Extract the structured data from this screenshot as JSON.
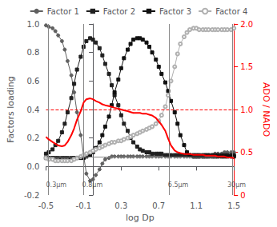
{
  "chart_data": {
    "type": "line",
    "xlabel": "log Dp",
    "ylabel": "Factors loading",
    "y2label": "ADO / NADO",
    "xlim": [
      -0.5,
      1.5
    ],
    "ylim": [
      -0.2,
      1.0
    ],
    "y2lim": [
      0,
      2.0
    ],
    "xticks": [
      -0.5,
      -0.1,
      0.3,
      0.7,
      1.1,
      1.5
    ],
    "yticks": [
      -0.2,
      {
        "value": 0.0,
        "label": "0.0"
      },
      0.2,
      0.4,
      0.6,
      0.8,
      {
        "value": 1.0,
        "label": "1.0"
      }
    ],
    "y2ticks": [
      0,
      0.5,
      {
        "value": 1.0,
        "label": "1.0"
      },
      1.5,
      {
        "value": 2.0,
        "label": "2.0"
      }
    ],
    "grid": false,
    "legend": "top",
    "x": [
      -0.5,
      -0.47,
      -0.43,
      -0.4,
      -0.37,
      -0.33,
      -0.3,
      -0.27,
      -0.23,
      -0.2,
      -0.17,
      -0.13,
      -0.1,
      -0.07,
      -0.03,
      0.0,
      0.03,
      0.07,
      0.1,
      0.13,
      0.17,
      0.2,
      0.23,
      0.27,
      0.3,
      0.33,
      0.37,
      0.4,
      0.43,
      0.47,
      0.5,
      0.53,
      0.57,
      0.6,
      0.63,
      0.67,
      0.7,
      0.73,
      0.77,
      0.8,
      0.83,
      0.87,
      0.9,
      0.93,
      0.97,
      1.0,
      1.03,
      1.07,
      1.1,
      1.13,
      1.17,
      1.2,
      1.23,
      1.27,
      1.3,
      1.33,
      1.37,
      1.4,
      1.43,
      1.47,
      1.5
    ],
    "series": [
      {
        "name": "Factor 1",
        "color": "#606060",
        "marker": "circle",
        "values": [
          0.99,
          0.98,
          0.97,
          0.95,
          0.92,
          0.88,
          0.82,
          0.74,
          0.64,
          0.52,
          0.38,
          0.22,
          0.08,
          -0.05,
          -0.1,
          -0.09,
          -0.06,
          -0.02,
          0.02,
          0.05,
          0.06,
          0.07,
          0.07,
          0.07,
          0.07,
          0.07,
          0.07,
          0.07,
          0.07,
          0.07,
          0.07,
          0.07,
          0.07,
          0.07,
          0.07,
          0.07,
          0.07,
          0.07,
          0.07,
          0.07,
          0.07,
          0.07,
          0.07,
          0.07,
          0.07,
          0.07,
          0.07,
          0.07,
          0.07,
          0.07,
          0.07,
          0.08,
          0.08,
          0.08,
          0.09,
          0.09,
          0.09,
          0.1,
          0.1,
          0.1,
          0.1
        ]
      },
      {
        "name": "Factor 2",
        "color": "#202020",
        "marker": "square",
        "values": [
          0.09,
          0.1,
          0.12,
          0.15,
          0.18,
          0.24,
          0.3,
          0.38,
          0.48,
          0.58,
          0.68,
          0.77,
          0.84,
          0.88,
          0.9,
          0.89,
          0.87,
          0.83,
          0.78,
          0.72,
          0.65,
          0.57,
          0.5,
          0.43,
          0.36,
          0.3,
          0.25,
          0.2,
          0.17,
          0.14,
          0.12,
          0.11,
          0.1,
          0.1,
          0.09,
          0.09,
          0.09,
          0.09,
          0.08,
          0.08,
          0.08,
          0.08,
          0.08,
          0.08,
          0.08,
          0.08,
          0.08,
          0.08,
          0.08,
          0.08,
          0.08,
          0.08,
          0.08,
          0.08,
          0.08,
          0.08,
          0.08,
          0.08,
          0.08,
          0.08,
          0.08
        ]
      },
      {
        "name": "Factor 3",
        "color": "#101010",
        "marker": "square",
        "values": [
          0.06,
          0.06,
          0.06,
          0.06,
          0.06,
          0.06,
          0.06,
          0.06,
          0.06,
          0.06,
          0.06,
          0.06,
          0.06,
          0.07,
          0.08,
          0.1,
          0.13,
          0.17,
          0.22,
          0.28,
          0.35,
          0.43,
          0.52,
          0.61,
          0.69,
          0.76,
          0.82,
          0.86,
          0.89,
          0.9,
          0.9,
          0.89,
          0.87,
          0.84,
          0.8,
          0.75,
          0.7,
          0.65,
          0.59,
          0.53,
          0.46,
          0.38,
          0.3,
          0.22,
          0.15,
          0.1,
          0.08,
          0.07,
          0.07,
          0.07,
          0.07,
          0.07,
          0.07,
          0.07,
          0.07,
          0.07,
          0.07,
          0.07,
          0.07,
          0.07,
          0.07
        ]
      },
      {
        "name": "Factor 4",
        "color": "#b0b0b0",
        "marker": "open_circle",
        "values": [
          0.06,
          0.05,
          0.05,
          0.04,
          0.04,
          0.04,
          0.04,
          0.04,
          0.04,
          0.05,
          0.06,
          0.07,
          0.08,
          0.09,
          0.1,
          0.11,
          0.12,
          0.13,
          0.14,
          0.15,
          0.16,
          0.17,
          0.17,
          0.18,
          0.18,
          0.19,
          0.2,
          0.21,
          0.22,
          0.23,
          0.24,
          0.25,
          0.26,
          0.27,
          0.28,
          0.3,
          0.32,
          0.36,
          0.42,
          0.5,
          0.6,
          0.7,
          0.79,
          0.86,
          0.91,
          0.94,
          0.96,
          0.97,
          0.97,
          0.96,
          0.96,
          0.96,
          0.96,
          0.96,
          0.96,
          0.96,
          0.96,
          0.96,
          0.96,
          0.96,
          0.97
        ]
      },
      {
        "color": "red",
        "axis": "y2",
        "values": [
          0.68,
          0.65,
          0.62,
          0.6,
          0.58,
          0.57,
          0.58,
          0.62,
          0.7,
          0.78,
          0.88,
          0.98,
          1.08,
          1.12,
          1.13,
          1.12,
          1.1,
          1.08,
          1.06,
          1.05,
          1.04,
          1.03,
          1.02,
          1.01,
          1.0,
          0.99,
          0.98,
          0.97,
          0.96,
          0.96,
          0.96,
          0.95,
          0.95,
          0.94,
          0.93,
          0.9,
          0.86,
          0.82,
          0.75,
          0.66,
          0.58,
          0.52,
          0.5,
          0.49,
          0.48,
          0.48,
          0.48,
          0.47,
          0.47,
          0.47,
          0.47,
          0.46,
          0.46,
          0.46,
          0.46,
          0.45,
          0.45,
          0.45,
          0.44,
          0.44,
          0.43
        ]
      }
    ],
    "reference_lines": [
      {
        "axis": "y",
        "value": 0.065,
        "color": "#888888"
      },
      {
        "axis": "x",
        "value": -0.477,
        "color": "#888888"
      },
      {
        "axis": "x",
        "value": -0.097,
        "color": "#888888"
      },
      {
        "axis": "x",
        "value": 0.813,
        "color": "#888888"
      },
      {
        "axis": "x",
        "value": 1.477,
        "color": "#888888"
      },
      {
        "axis": "y2",
        "value": 1.0,
        "color": "red",
        "line_style": "dashed"
      }
    ],
    "annotations": [
      {
        "text": "0.3μm",
        "x": -0.499,
        "y": -0.105
      },
      {
        "text": "0.8μm",
        "x": -0.115,
        "y": -0.105
      },
      {
        "text": "6.5μm",
        "x": 0.798,
        "y": -0.105
      },
      {
        "text": "30μm",
        "x": 1.43,
        "y": -0.105
      }
    ]
  }
}
